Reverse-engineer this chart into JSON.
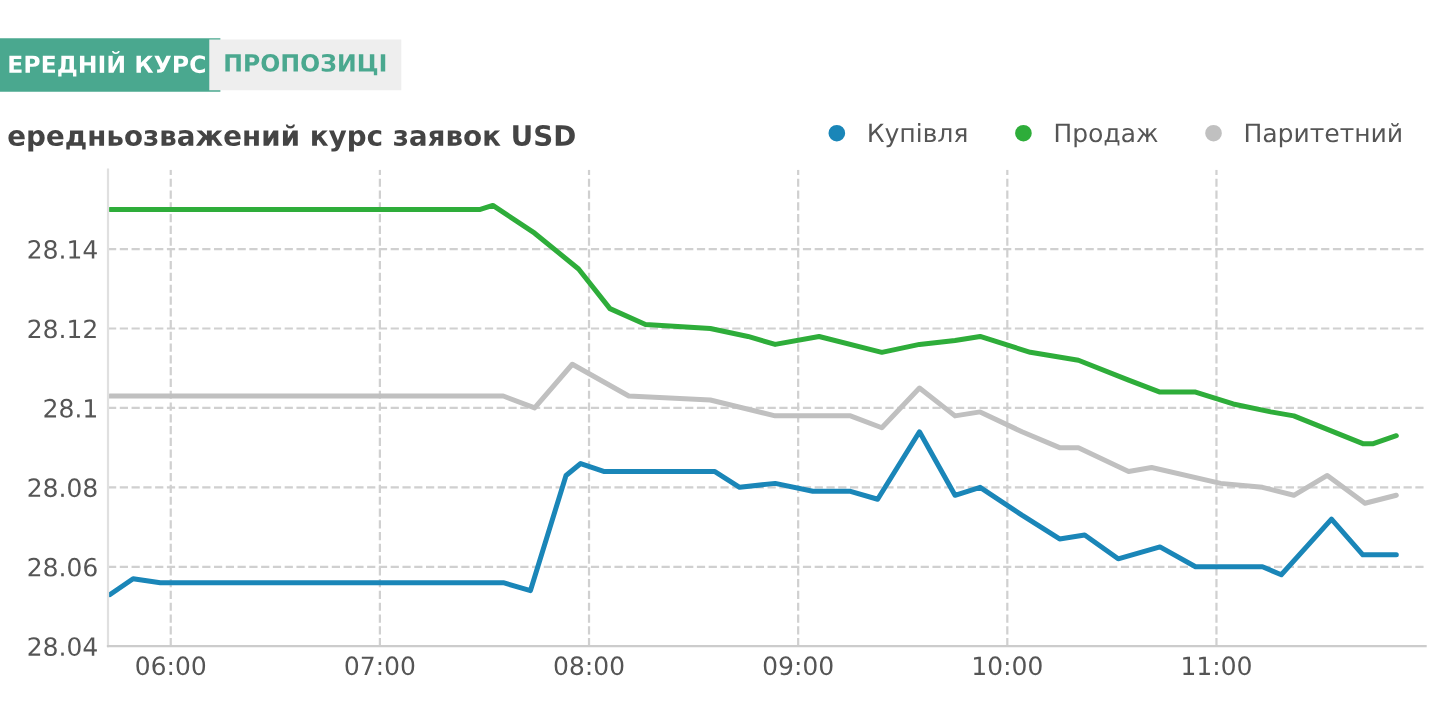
{
  "chart_data": {
    "type": "line",
    "title": "ередньозважений курс заявок USD",
    "annotations": [
      "ЕРЕДНІЙ КУРС",
      "ПРОПОЗИЦІ"
    ],
    "series": [
      {
        "name": "Купівля",
        "color": "#1a86b8",
        "x": [
          5.71,
          5.82,
          5.95,
          7.59,
          7.72,
          7.89,
          7.96,
          8.07,
          8.6,
          8.72,
          8.89,
          9.07,
          9.25,
          9.38,
          9.58,
          9.75,
          9.87,
          10.07,
          10.25,
          10.37,
          10.53,
          10.73,
          10.9,
          11.22,
          11.31,
          11.55,
          11.7,
          11.86
        ],
        "values": [
          28.053,
          28.057,
          28.056,
          28.056,
          28.054,
          28.083,
          28.086,
          28.084,
          28.084,
          28.08,
          28.081,
          28.079,
          28.079,
          28.077,
          28.094,
          28.078,
          28.08,
          28.073,
          28.067,
          28.068,
          28.062,
          28.065,
          28.06,
          28.06,
          28.058,
          28.072,
          28.063,
          28.063
        ]
      },
      {
        "name": "Продаж",
        "color": "#2ead3a",
        "x": [
          5.71,
          7.48,
          7.54,
          7.74,
          7.95,
          8.1,
          8.27,
          8.58,
          8.76,
          8.89,
          9.1,
          9.4,
          9.58,
          9.75,
          9.87,
          10.11,
          10.34,
          10.58,
          10.73,
          10.9,
          11.08,
          11.26,
          11.37,
          11.7,
          11.75,
          11.86
        ],
        "values": [
          28.15,
          28.15,
          28.151,
          28.144,
          28.135,
          28.125,
          28.121,
          28.12,
          28.118,
          28.116,
          28.118,
          28.114,
          28.116,
          28.117,
          28.118,
          28.114,
          28.112,
          28.107,
          28.104,
          28.104,
          28.101,
          28.099,
          28.098,
          28.091,
          28.091,
          28.093
        ]
      },
      {
        "name": "Паритетний",
        "color": "#c0c0c0",
        "x": [
          5.71,
          7.59,
          7.74,
          7.92,
          8.19,
          8.58,
          8.89,
          9.25,
          9.4,
          9.58,
          9.75,
          9.87,
          10.07,
          10.25,
          10.34,
          10.58,
          10.69,
          11.02,
          11.22,
          11.37,
          11.53,
          11.71,
          11.86
        ],
        "values": [
          28.103,
          28.103,
          28.1,
          28.111,
          28.103,
          28.102,
          28.098,
          28.098,
          28.095,
          28.105,
          28.098,
          28.099,
          28.094,
          28.09,
          28.09,
          28.084,
          28.085,
          28.081,
          28.08,
          28.078,
          28.083,
          28.076,
          28.078
        ]
      }
    ],
    "xlim": [
      5.7,
      12.0
    ],
    "xticks": [
      {
        "value": 6,
        "label": "06:00"
      },
      {
        "value": 7,
        "label": "07:00"
      },
      {
        "value": 8,
        "label": "08:00"
      },
      {
        "value": 9,
        "label": "09:00"
      },
      {
        "value": 10,
        "label": "10:00"
      },
      {
        "value": 11,
        "label": "11:00"
      }
    ],
    "ylim": [
      28.04,
      28.16
    ],
    "yticks": [
      28.04,
      28.06,
      28.08,
      28.1,
      28.12,
      28.14
    ],
    "grid": true,
    "legend": "top right",
    "marker": "none",
    "line_style": "solid"
  }
}
